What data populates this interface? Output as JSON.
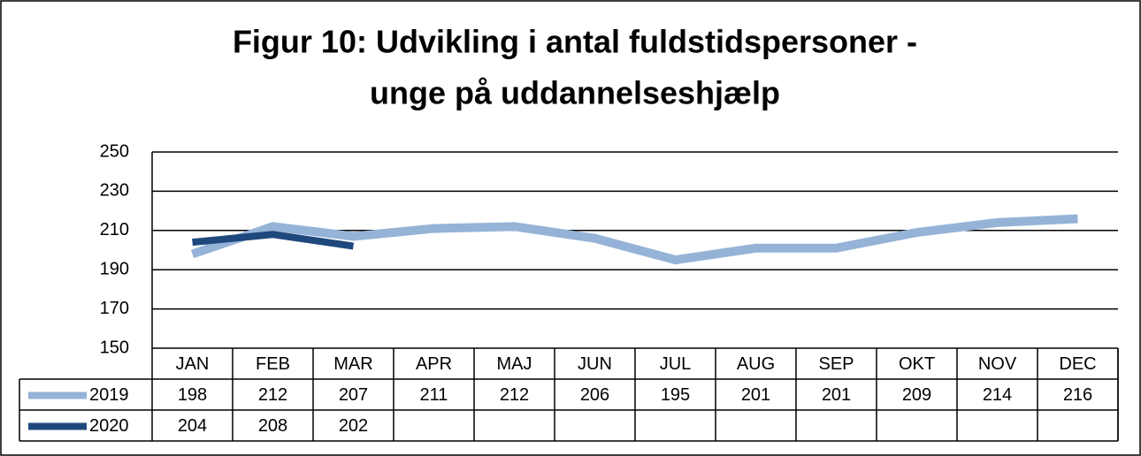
{
  "chart_data": {
    "type": "line",
    "title": [
      "Figur 10: Udvikling i antal fuldstidspersoner -",
      "unge på uddannelseshjælp"
    ],
    "categories": [
      "JAN",
      "FEB",
      "MAR",
      "APR",
      "MAJ",
      "JUN",
      "JUL",
      "AUG",
      "SEP",
      "OKT",
      "NOV",
      "DEC"
    ],
    "series": [
      {
        "name": "2019",
        "color": "#95b3d7",
        "values": [
          198,
          212,
          207,
          211,
          212,
          206,
          195,
          201,
          201,
          209,
          214,
          216
        ]
      },
      {
        "name": "2020",
        "color": "#1f497d",
        "values": [
          204,
          208,
          202,
          null,
          null,
          null,
          null,
          null,
          null,
          null,
          null,
          null
        ]
      }
    ],
    "ylim": [
      150,
      250
    ],
    "yticks": [
      150,
      170,
      190,
      210,
      230,
      250
    ],
    "grid": true
  }
}
